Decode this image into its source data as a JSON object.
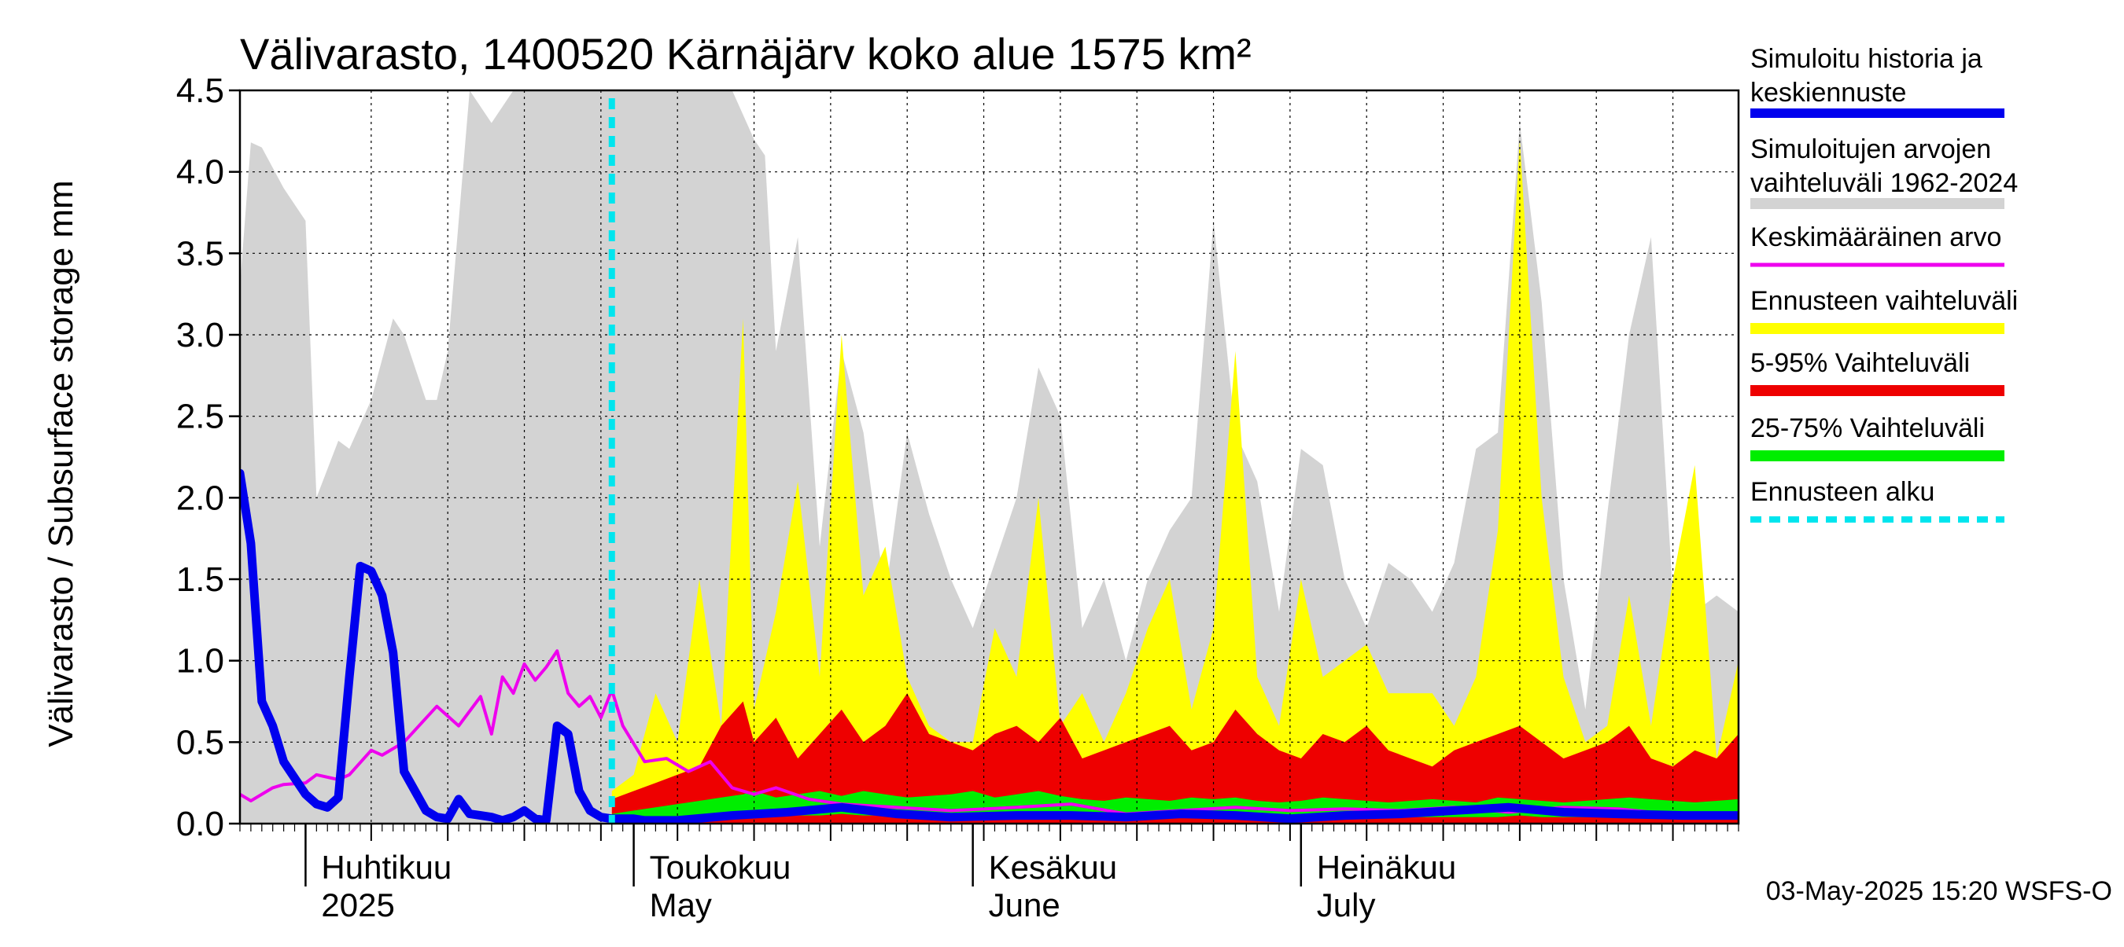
{
  "chart_data": {
    "type": "area",
    "title": "Välivarasto, 1400520 Kärnäjärv koko alue 1575 km²",
    "ylabel": "Välivarasto / Subsurface storage  mm",
    "ylim": [
      0,
      4.5
    ],
    "yticks": [
      0.0,
      0.5,
      1.0,
      1.5,
      2.0,
      2.5,
      3.0,
      3.5,
      4.0,
      4.5
    ],
    "ytick_labels": [
      "0.0",
      "0.5",
      "1.0",
      "1.5",
      "2.0",
      "2.5",
      "3.0",
      "3.5",
      "4.0",
      "4.5"
    ],
    "x_start": "2025-03-26",
    "x_end": "2025-08-10",
    "grid": true,
    "legend_position": "right",
    "forecast_start": "2025-04-29",
    "months": [
      {
        "date": "2025-04-01",
        "label1": "Huhtikuu",
        "label2": "2025"
      },
      {
        "date": "2025-05-01",
        "label1": "Toukokuu",
        "label2": "May"
      },
      {
        "date": "2025-06-01",
        "label1": "Kesäkuu",
        "label2": "June"
      },
      {
        "date": "2025-07-01",
        "label1": "Heinäkuu",
        "label2": "July"
      }
    ],
    "week_ticks": [
      "2025-04-07",
      "2025-04-14",
      "2025-04-21",
      "2025-04-28",
      "2025-05-05",
      "2025-05-12",
      "2025-05-19",
      "2025-05-26",
      "2025-06-02",
      "2025-06-09",
      "2025-06-16",
      "2025-06-23",
      "2025-06-30",
      "2025-07-07",
      "2025-07-14",
      "2025-07-21",
      "2025-07-28",
      "2025-08-04"
    ],
    "range_dates": [
      "2025-03-26",
      "2025-03-27",
      "2025-03-28",
      "2025-03-30",
      "2025-04-01",
      "2025-04-02",
      "2025-04-04",
      "2025-04-05",
      "2025-04-07",
      "2025-04-09",
      "2025-04-10",
      "2025-04-12",
      "2025-04-13",
      "2025-04-14",
      "2025-04-16",
      "2025-04-18",
      "2025-04-20",
      "2025-04-24",
      "2025-04-28",
      "2025-05-02",
      "2025-05-06",
      "2025-05-08",
      "2025-05-10",
      "2025-05-12",
      "2025-05-13",
      "2025-05-14",
      "2025-05-16",
      "2025-05-18",
      "2025-05-20",
      "2025-05-22",
      "2025-05-24",
      "2025-05-26",
      "2025-05-28",
      "2025-05-30",
      "2025-06-01",
      "2025-06-03",
      "2025-06-05",
      "2025-06-07",
      "2025-06-09",
      "2025-06-11",
      "2025-06-13",
      "2025-06-15",
      "2025-06-17",
      "2025-06-19",
      "2025-06-21",
      "2025-06-23",
      "2025-06-25",
      "2025-06-27",
      "2025-06-29",
      "2025-07-01",
      "2025-07-03",
      "2025-07-05",
      "2025-07-07",
      "2025-07-09",
      "2025-07-11",
      "2025-07-13",
      "2025-07-15",
      "2025-07-17",
      "2025-07-19",
      "2025-07-21",
      "2025-07-23",
      "2025-07-25",
      "2025-07-27",
      "2025-07-29",
      "2025-07-31",
      "2025-08-02",
      "2025-08-04",
      "2025-08-06",
      "2025-08-08",
      "2025-08-10"
    ],
    "range_max": [
      3.3,
      4.18,
      4.15,
      3.9,
      3.7,
      2.0,
      2.35,
      2.3,
      2.6,
      3.1,
      3.0,
      2.6,
      2.6,
      2.9,
      4.5,
      4.3,
      4.5,
      4.5,
      4.5,
      4.5,
      4.5,
      4.5,
      4.5,
      4.2,
      4.1,
      2.9,
      3.6,
      1.7,
      2.9,
      2.4,
      1.4,
      2.4,
      1.9,
      1.5,
      1.2,
      1.6,
      2.0,
      2.8,
      2.5,
      1.2,
      1.5,
      1.0,
      1.5,
      1.8,
      2.0,
      3.7,
      2.4,
      2.1,
      1.3,
      2.3,
      2.2,
      1.5,
      1.2,
      1.6,
      1.5,
      1.3,
      1.6,
      2.3,
      2.4,
      4.3,
      3.2,
      1.5,
      0.7,
      1.9,
      3.0,
      3.6,
      1.4,
      1.3,
      1.4,
      1.3
    ],
    "sim_dates": [
      "2025-03-26",
      "2025-03-27",
      "2025-03-28",
      "2025-03-29",
      "2025-03-30",
      "2025-03-31",
      "2025-04-01",
      "2025-04-02",
      "2025-04-03",
      "2025-04-04",
      "2025-04-05",
      "2025-04-06",
      "2025-04-07",
      "2025-04-08",
      "2025-04-09",
      "2025-04-10",
      "2025-04-11",
      "2025-04-12",
      "2025-04-13",
      "2025-04-14",
      "2025-04-15",
      "2025-04-16",
      "2025-04-17",
      "2025-04-18",
      "2025-04-19",
      "2025-04-20",
      "2025-04-21",
      "2025-04-22",
      "2025-04-23",
      "2025-04-24",
      "2025-04-25",
      "2025-04-26",
      "2025-04-27",
      "2025-04-28",
      "2025-04-29",
      "2025-04-30",
      "2025-05-01",
      "2025-05-02",
      "2025-05-05",
      "2025-05-10",
      "2025-05-15",
      "2025-05-20",
      "2025-05-25",
      "2025-05-30",
      "2025-06-05",
      "2025-06-10",
      "2025-06-15",
      "2025-06-20",
      "2025-06-25",
      "2025-06-30",
      "2025-07-05",
      "2025-07-10",
      "2025-07-15",
      "2025-07-20",
      "2025-07-25",
      "2025-07-30",
      "2025-08-05",
      "2025-08-10"
    ],
    "sim_values": [
      2.15,
      1.72,
      0.75,
      0.6,
      0.38,
      0.28,
      0.18,
      0.12,
      0.1,
      0.16,
      0.9,
      1.58,
      1.55,
      1.4,
      1.05,
      0.32,
      0.2,
      0.08,
      0.04,
      0.03,
      0.15,
      0.06,
      0.05,
      0.04,
      0.02,
      0.04,
      0.08,
      0.03,
      0.02,
      0.6,
      0.55,
      0.2,
      0.08,
      0.04,
      0.03,
      0.03,
      0.03,
      0.02,
      0.02,
      0.05,
      0.07,
      0.1,
      0.06,
      0.04,
      0.05,
      0.05,
      0.04,
      0.06,
      0.05,
      0.03,
      0.05,
      0.06,
      0.08,
      0.1,
      0.07,
      0.06,
      0.05,
      0.05
    ],
    "mean_dates": [
      "2025-03-26",
      "2025-03-27",
      "2025-03-29",
      "2025-03-30",
      "2025-04-01",
      "2025-04-02",
      "2025-04-04",
      "2025-04-05",
      "2025-04-07",
      "2025-04-08",
      "2025-04-10",
      "2025-04-13",
      "2025-04-15",
      "2025-04-17",
      "2025-04-18",
      "2025-04-19",
      "2025-04-20",
      "2025-04-21",
      "2025-04-22",
      "2025-04-23",
      "2025-04-24",
      "2025-04-25",
      "2025-04-26",
      "2025-04-27",
      "2025-04-28",
      "2025-04-29",
      "2025-04-30",
      "2025-05-02",
      "2025-05-04",
      "2025-05-06",
      "2025-05-08",
      "2025-05-10",
      "2025-05-12",
      "2025-05-14",
      "2025-05-17",
      "2025-05-20",
      "2025-05-25",
      "2025-05-30",
      "2025-06-05",
      "2025-06-10",
      "2025-06-15",
      "2025-06-20",
      "2025-06-25",
      "2025-06-30",
      "2025-07-05",
      "2025-07-10",
      "2025-07-15",
      "2025-07-20",
      "2025-07-25",
      "2025-07-30",
      "2025-08-05",
      "2025-08-10"
    ],
    "mean_values": [
      0.18,
      0.14,
      0.22,
      0.24,
      0.25,
      0.3,
      0.27,
      0.3,
      0.45,
      0.42,
      0.5,
      0.72,
      0.6,
      0.78,
      0.55,
      0.9,
      0.8,
      0.98,
      0.88,
      0.96,
      1.06,
      0.8,
      0.72,
      0.78,
      0.65,
      0.82,
      0.6,
      0.38,
      0.4,
      0.32,
      0.38,
      0.22,
      0.18,
      0.22,
      0.15,
      0.12,
      0.1,
      0.08,
      0.1,
      0.12,
      0.06,
      0.08,
      0.1,
      0.08,
      0.09,
      0.08,
      0.1,
      0.07,
      0.1,
      0.09,
      0.05,
      0.06
    ],
    "fc_dates": [
      "2025-04-29",
      "2025-05-01",
      "2025-05-03",
      "2025-05-05",
      "2025-05-07",
      "2025-05-09",
      "2025-05-11",
      "2025-05-12",
      "2025-05-14",
      "2025-05-16",
      "2025-05-18",
      "2025-05-20",
      "2025-05-22",
      "2025-05-24",
      "2025-05-26",
      "2025-05-28",
      "2025-05-30",
      "2025-06-01",
      "2025-06-03",
      "2025-06-05",
      "2025-06-07",
      "2025-06-09",
      "2025-06-11",
      "2025-06-13",
      "2025-06-15",
      "2025-06-17",
      "2025-06-19",
      "2025-06-21",
      "2025-06-23",
      "2025-06-25",
      "2025-06-27",
      "2025-06-29",
      "2025-07-01",
      "2025-07-03",
      "2025-07-05",
      "2025-07-07",
      "2025-07-09",
      "2025-07-11",
      "2025-07-13",
      "2025-07-15",
      "2025-07-17",
      "2025-07-19",
      "2025-07-21",
      "2025-07-23",
      "2025-07-25",
      "2025-07-27",
      "2025-07-29",
      "2025-07-31",
      "2025-08-02",
      "2025-08-04",
      "2025-08-06",
      "2025-08-08",
      "2025-08-10"
    ],
    "fc_max": [
      0.2,
      0.3,
      0.8,
      0.5,
      1.5,
      0.6,
      3.1,
      0.7,
      1.3,
      2.1,
      0.9,
      3.0,
      1.4,
      1.7,
      0.9,
      0.6,
      0.5,
      0.5,
      1.2,
      0.9,
      2.0,
      0.6,
      0.8,
      0.5,
      0.8,
      1.2,
      1.5,
      0.7,
      1.2,
      2.9,
      0.9,
      0.6,
      1.5,
      0.9,
      1.0,
      1.1,
      0.8,
      0.8,
      0.8,
      0.6,
      0.9,
      1.8,
      4.2,
      2.0,
      0.9,
      0.5,
      0.6,
      1.4,
      0.6,
      1.5,
      2.2,
      0.4,
      1.0
    ],
    "fc_p95": [
      0.15,
      0.2,
      0.25,
      0.3,
      0.35,
      0.6,
      0.75,
      0.5,
      0.65,
      0.4,
      0.55,
      0.7,
      0.5,
      0.6,
      0.8,
      0.55,
      0.5,
      0.45,
      0.55,
      0.6,
      0.5,
      0.65,
      0.4,
      0.45,
      0.5,
      0.55,
      0.6,
      0.45,
      0.5,
      0.7,
      0.55,
      0.45,
      0.4,
      0.55,
      0.5,
      0.6,
      0.45,
      0.4,
      0.35,
      0.45,
      0.5,
      0.55,
      0.6,
      0.5,
      0.4,
      0.45,
      0.5,
      0.6,
      0.4,
      0.35,
      0.45,
      0.4,
      0.55
    ],
    "fc_p75": [
      0.06,
      0.08,
      0.1,
      0.12,
      0.14,
      0.16,
      0.18,
      0.2,
      0.16,
      0.18,
      0.2,
      0.17,
      0.2,
      0.18,
      0.16,
      0.17,
      0.18,
      0.2,
      0.16,
      0.18,
      0.2,
      0.17,
      0.15,
      0.14,
      0.16,
      0.15,
      0.14,
      0.16,
      0.15,
      0.16,
      0.14,
      0.13,
      0.14,
      0.16,
      0.15,
      0.14,
      0.13,
      0.14,
      0.15,
      0.14,
      0.13,
      0.16,
      0.15,
      0.14,
      0.13,
      0.14,
      0.15,
      0.16,
      0.15,
      0.14,
      0.13,
      0.14,
      0.15
    ],
    "fc_p25": [
      0.02,
      0.02,
      0.03,
      0.03,
      0.04,
      0.04,
      0.05,
      0.05,
      0.05,
      0.05,
      0.05,
      0.06,
      0.05,
      0.05,
      0.05,
      0.05,
      0.04,
      0.05,
      0.05,
      0.04,
      0.05,
      0.05,
      0.04,
      0.04,
      0.04,
      0.05,
      0.04,
      0.04,
      0.04,
      0.05,
      0.04,
      0.04,
      0.04,
      0.04,
      0.04,
      0.04,
      0.04,
      0.04,
      0.04,
      0.04,
      0.04,
      0.04,
      0.05,
      0.04,
      0.04,
      0.04,
      0.04,
      0.04,
      0.04,
      0.04,
      0.04,
      0.04,
      0.04
    ],
    "fc_min": [
      0.0,
      0.0,
      0.0,
      0.0,
      0.0,
      0.0,
      0.0,
      0.0,
      0.0,
      0.0,
      0.0,
      0.0,
      0.0,
      0.0,
      0.0,
      0.0,
      0.0,
      0.0,
      0.0,
      0.0,
      0.0,
      0.0,
      0.0,
      0.0,
      0.0,
      0.0,
      0.0,
      0.0,
      0.0,
      0.0,
      0.0,
      0.0,
      0.0,
      0.0,
      0.0,
      0.0,
      0.0,
      0.0,
      0.0,
      0.0,
      0.0,
      0.0,
      0.0,
      0.0,
      0.0,
      0.0,
      0.0,
      0.0,
      0.0,
      0.0,
      0.0,
      0.0,
      0.0
    ],
    "legend": [
      {
        "label1": "Simuloitu historia ja",
        "label2": "keskiennuste",
        "color": "#0000ee",
        "style": "thick"
      },
      {
        "label1": "Simuloitujen arvojen",
        "label2": "vaihteluväli 1962-2024",
        "color": "#d3d3d3",
        "style": "band"
      },
      {
        "label1": "Keskimääräinen arvo",
        "label2": "",
        "color": "#ee00ee",
        "style": "thin"
      },
      {
        "label1": "Ennusteen vaihteluväli",
        "label2": "",
        "color": "#ffff00",
        "style": "band"
      },
      {
        "label1": "5-95% Vaihteluväli",
        "label2": "",
        "color": "#ee0000",
        "style": "band"
      },
      {
        "label1": "25-75% Vaihteluväli",
        "label2": "",
        "color": "#00ee00",
        "style": "band"
      },
      {
        "label1": "Ennusteen alku",
        "label2": "",
        "color": "#00e5ee",
        "style": "dashed"
      }
    ],
    "footer": "03-May-2025 15:20 WSFS-O"
  }
}
